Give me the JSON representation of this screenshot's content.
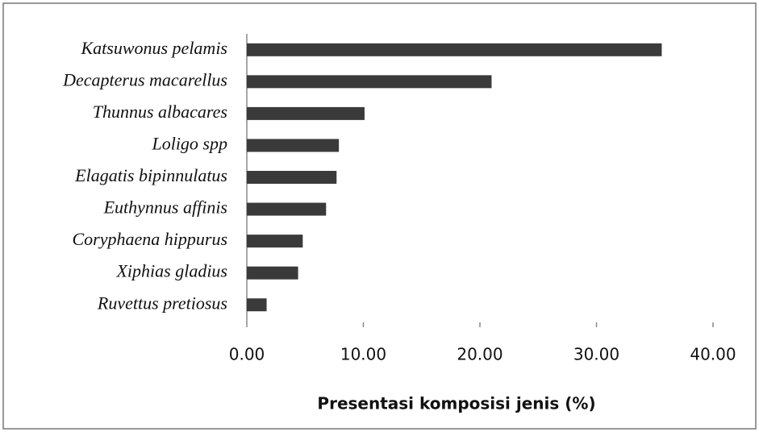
{
  "chart_data": {
    "type": "bar",
    "orientation": "horizontal",
    "x_label": "Presentasi komposisi jenis (%)",
    "categories": [
      "Katsuwonus pelamis",
      "Decapterus macarellus",
      "Thunnus albacares",
      "Loligo spp",
      "Elagatis bipinnulatus",
      "Euthynnus affinis",
      "Coryphaena hippurus",
      "Xiphias gladius",
      "Ruvettus pretiosus"
    ],
    "values": [
      35.6,
      21.0,
      10.1,
      7.9,
      7.7,
      6.8,
      4.8,
      4.4,
      1.7
    ],
    "color": "#3a3a3a",
    "xlim": [
      0,
      40
    ],
    "xticks": [
      {
        "value": 0,
        "label": "0.00"
      },
      {
        "value": 10,
        "label": "10.00"
      },
      {
        "value": 20,
        "label": "20.00"
      },
      {
        "value": 30,
        "label": "30.00"
      },
      {
        "value": 40,
        "label": "40.00"
      }
    ],
    "grid": false
  }
}
